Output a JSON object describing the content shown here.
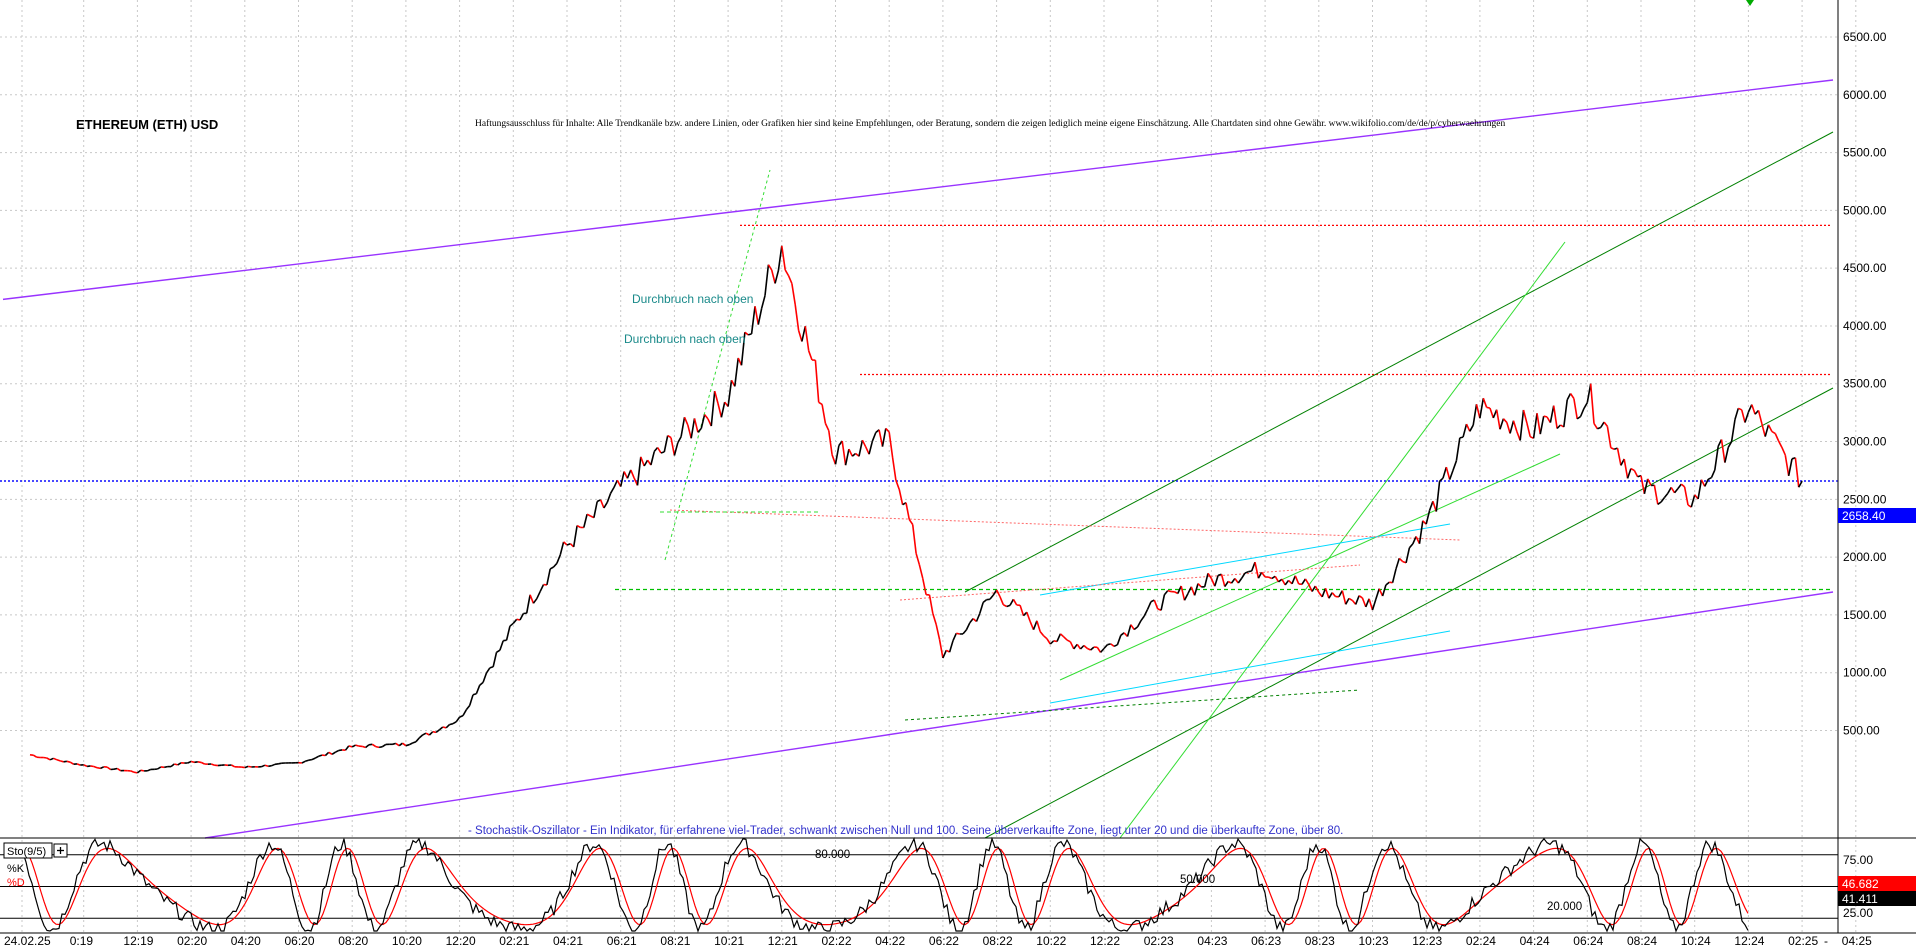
{
  "chart_data": {
    "type": "candlestick-line",
    "title": "ETHEREUM (ETH) USD",
    "disclaimer": "Haftungsausschluss für Inhalte: Alle Trendkanäle bzw. andere Linien, oder Grafiken hier sind keine Empfehlungen, oder Beratung, sondern die zeigen lediglich meine eigene Einschätzung. Alle Chartdaten sind ohne Gewähr.  www.wikifolio.com/de/de/p/cyberwaehrungen",
    "stochastic_note": "- Stochastik-Oszillator - Ein Indikator, für erfahrene viel-Trader, schwankt zwischen Null und 100. Seine überverkaufte Zone, liegt unter 20 und die überkaufte Zone, über 80.",
    "annotations": [
      "Durchbruch nach oben",
      "Durchbruch nach oben"
    ],
    "price_axis": {
      "ticks": [
        500,
        1000,
        1500,
        2000,
        2500,
        3000,
        3500,
        4000,
        4500,
        5000,
        5500,
        6000,
        6500
      ],
      "tick_labels": [
        "500.00",
        "1000.00",
        "1500.00",
        "2000.00",
        "2500.00",
        "3000.00",
        "3500.00",
        "4000.00",
        "4500.00",
        "5000.00",
        "5500.00",
        "6000.00",
        "6500.00"
      ],
      "range": [
        -430,
        6820
      ]
    },
    "current_price_label": "2658.40",
    "current_price": 2658.4,
    "date_labels": [
      "24.02.25",
      "0:19",
      "12:19",
      "02:20",
      "04:20",
      "06:20",
      "08:20",
      "10:20",
      "12:20",
      "02:21",
      "04:21",
      "06:21",
      "08:21",
      "10:21",
      "12:21",
      "02:22",
      "04:22",
      "06:22",
      "08:22",
      "10:22",
      "12:22",
      "02:23",
      "04:23",
      "06:23",
      "08:23",
      "10:23",
      "12:23",
      "02:24",
      "04:24",
      "06:24",
      "08:24",
      "10:24",
      "12:24",
      "02:25",
      "04:25"
    ],
    "price_series": {
      "x": [
        "24.02.25",
        "0:19",
        "12:19",
        "02:20",
        "04:20",
        "06:20",
        "08:20",
        "10:20",
        "12:20",
        "02:21",
        "04:21",
        "06:21",
        "08:21",
        "10:21",
        "12:21",
        "02:22",
        "04:22",
        "06:22",
        "08:22",
        "10:22",
        "12:22",
        "02:23",
        "04:23",
        "06:23",
        "08:23",
        "10:23",
        "12:23",
        "02:24",
        "04:24",
        "06:24",
        "08:24",
        "10:24",
        "12:24",
        "02:25"
      ],
      "close": [
        290,
        200,
        140,
        230,
        180,
        220,
        360,
        380,
        600,
        1400,
        2100,
        2600,
        3000,
        3400,
        4700,
        2900,
        3000,
        1150,
        1700,
        1300,
        1200,
        1600,
        1800,
        1900,
        1700,
        1600,
        2300,
        3300,
        3100,
        3400,
        2600,
        2500,
        3300,
        2658
      ]
    },
    "horizontal_levels": [
      {
        "value": 4870,
        "style": "dotted",
        "color": "#ff0000"
      },
      {
        "value": 3580,
        "style": "dotted",
        "color": "#ff0000"
      },
      {
        "value": 1720,
        "style": "dashed",
        "color": "#00c000"
      },
      {
        "value": 2658.4,
        "style": "dotted",
        "color": "#0000ff"
      }
    ],
    "stochastic": {
      "label": "Sto(9/5)",
      "legend": [
        "%K",
        "%D"
      ],
      "ticks": [
        25,
        75
      ],
      "tick_labels": [
        "25.00",
        "75.00"
      ],
      "levels": [
        "80.000",
        "50.000",
        "20.000"
      ],
      "k_value": "41.411",
      "d_value": "46.682"
    },
    "colors": {
      "price_up": "#000000",
      "price_down": "#ff0000",
      "channel": "#9933ff",
      "trend": "#008000",
      "trend_light": "#33dd33",
      "aux": "#00d8ff",
      "current": "#0000ff"
    }
  }
}
